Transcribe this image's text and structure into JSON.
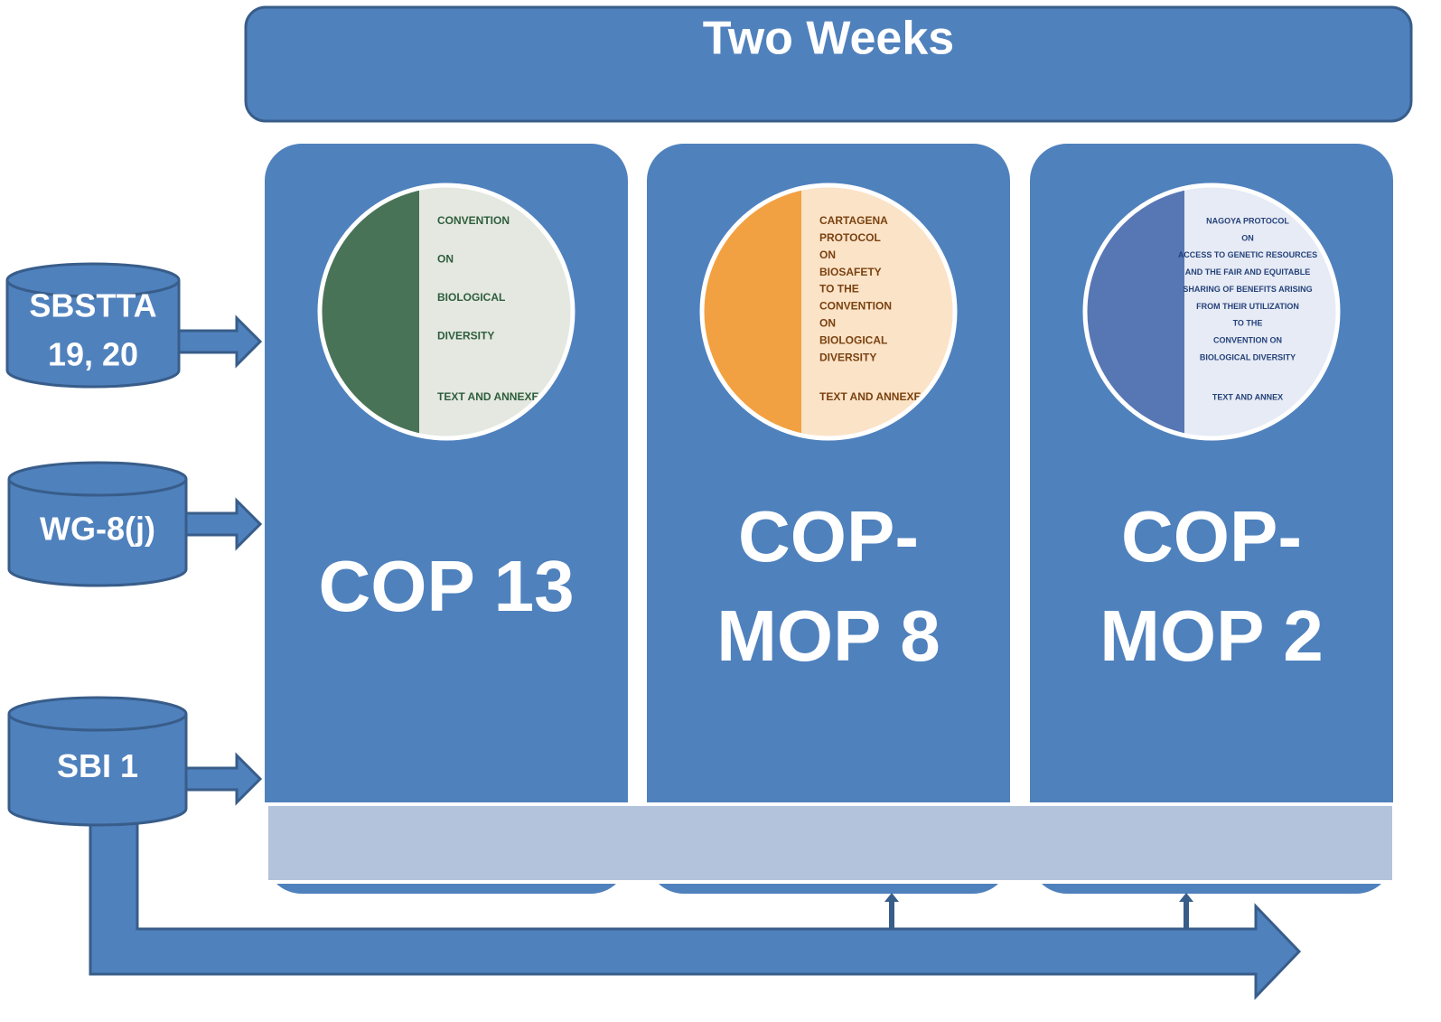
{
  "header": {
    "title": "Two Weeks"
  },
  "meetings": [
    {
      "lines": [
        "SBSTTA",
        "19, 20"
      ]
    },
    {
      "lines": [
        "WG-8(j)"
      ]
    },
    {
      "lines": [
        "SBI 1"
      ]
    }
  ],
  "columns": [
    {
      "lines": [
        "COP 13"
      ],
      "cover": [
        "CONVENTION",
        "ON",
        "BIOLOGICAL",
        "DIVERSITY",
        "TEXT AND ANNEXES"
      ]
    },
    {
      "lines": [
        "COP-",
        "MOP 8"
      ],
      "cover": [
        "CARTAGENA",
        "PROTOCOL",
        "ON",
        "BIOSAFETY",
        "TO THE",
        "CONVENTION",
        "ON",
        "BIOLOGICAL",
        "DIVERSITY",
        "TEXT AND ANNEXES"
      ]
    },
    {
      "lines": [
        "COP-",
        "MOP 2"
      ],
      "cover": [
        "NAGOYA PROTOCOL",
        "ON",
        "ACCESS TO GENETIC RESOURCES",
        "AND THE FAIR AND EQUITABLE",
        "SHARING OF BENEFITS ARISING",
        "FROM THEIR UTILIZATION",
        "TO THE",
        "CONVENTION ON",
        "BIOLOGICAL DIVERSITY",
        "TEXT AND ANNEX"
      ]
    }
  ]
}
